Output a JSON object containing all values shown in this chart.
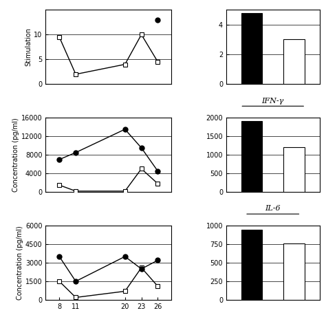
{
  "x_vals": [
    8,
    11,
    20,
    23,
    26
  ],
  "row1_line_filled_y": [
    null,
    null,
    null,
    null,
    13
  ],
  "row1_line_open_y": [
    9.5,
    2,
    4,
    10,
    4.5
  ],
  "row1_bar_black": 4.8,
  "row1_bar_white": 3.0,
  "row1_ylim": [
    0,
    15
  ],
  "row1_yticks": [
    0,
    5,
    10
  ],
  "row1_bar_ylim": [
    0,
    5
  ],
  "row1_bar_yticks": [
    0,
    2,
    4
  ],
  "row1_ylabel": "Stimulation",
  "row2_line_filled_y": [
    7000,
    8500,
    13500,
    9500,
    4500
  ],
  "row2_line_open_y": [
    1500,
    200,
    200,
    5000,
    1800
  ],
  "row2_bar_black": 1900,
  "row2_bar_white": 1200,
  "row2_ylim": [
    0,
    16000
  ],
  "row2_yticks": [
    0,
    4000,
    8000,
    12000,
    16000
  ],
  "row2_bar_ylim": [
    0,
    2000
  ],
  "row2_bar_yticks": [
    0,
    500,
    1000,
    1500,
    2000
  ],
  "row2_ylabel": "Concentration (pg/ml)",
  "row2_label": "IFN-γ",
  "row3_line_filled_y": [
    3500,
    1500,
    3500,
    2500,
    3200
  ],
  "row3_line_open_y": [
    1500,
    200,
    700,
    2600,
    1100
  ],
  "row3_bar_black": 940,
  "row3_bar_white": 760,
  "row3_ylim": [
    0,
    6000
  ],
  "row3_yticks": [
    0,
    1500,
    3000,
    4500,
    6000
  ],
  "row3_bar_ylim": [
    0,
    1000
  ],
  "row3_bar_yticks": [
    0,
    250,
    500,
    750,
    1000
  ],
  "row3_ylabel": "Concentration (pg/ml)",
  "row3_label": "IL-6",
  "bar_width": 0.5,
  "bar_black": "#000000",
  "bar_white": "#ffffff"
}
